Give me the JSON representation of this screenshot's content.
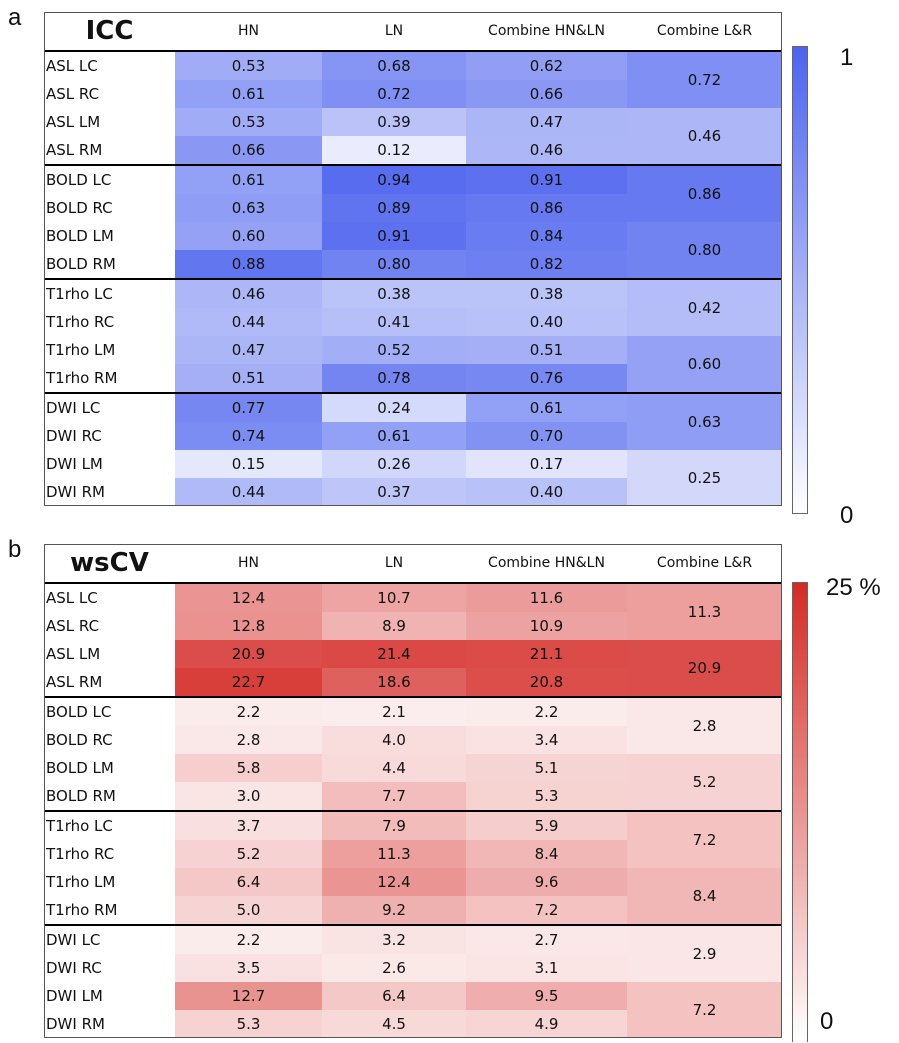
{
  "panels": [
    {
      "letter": "a",
      "metric": "ICC",
      "columns": [
        "HN",
        "LN",
        "Combine HN&LN",
        "Combine L&R"
      ],
      "colorbar": {
        "max_label": "1",
        "min_label": "0",
        "min": 0,
        "max": 1,
        "color": "#4d63ee"
      },
      "rows": [
        {
          "label": "ASL LC",
          "values": [
            "0.53",
            "0.68",
            "0.62"
          ]
        },
        {
          "label": "ASL RC",
          "values": [
            "0.61",
            "0.72",
            "0.66"
          ]
        },
        {
          "label": "ASL LM",
          "values": [
            "0.53",
            "0.39",
            "0.47"
          ]
        },
        {
          "label": "ASL RM",
          "values": [
            "0.66",
            "0.12",
            "0.46"
          ]
        },
        {
          "label": "BOLD LC",
          "values": [
            "0.61",
            "0.94",
            "0.91"
          ]
        },
        {
          "label": "BOLD RC",
          "values": [
            "0.63",
            "0.89",
            "0.86"
          ]
        },
        {
          "label": "BOLD LM",
          "values": [
            "0.60",
            "0.91",
            "0.84"
          ]
        },
        {
          "label": "BOLD RM",
          "values": [
            "0.88",
            "0.80",
            "0.82"
          ]
        },
        {
          "label": "T1rho LC",
          "values": [
            "0.46",
            "0.38",
            "0.38"
          ]
        },
        {
          "label": "T1rho RC",
          "values": [
            "0.44",
            "0.41",
            "0.40"
          ]
        },
        {
          "label": "T1rho LM",
          "values": [
            "0.47",
            "0.52",
            "0.51"
          ]
        },
        {
          "label": "T1rho RM",
          "values": [
            "0.51",
            "0.78",
            "0.76"
          ]
        },
        {
          "label": "DWI LC",
          "values": [
            "0.77",
            "0.24",
            "0.61"
          ]
        },
        {
          "label": "DWI RC",
          "values": [
            "0.74",
            "0.61",
            "0.70"
          ]
        },
        {
          "label": "DWI LM",
          "values": [
            "0.15",
            "0.26",
            "0.17"
          ]
        },
        {
          "label": "DWI RM",
          "values": [
            "0.44",
            "0.37",
            "0.40"
          ]
        }
      ],
      "combined_lr": [
        "0.72",
        "0.46",
        "0.86",
        "0.80",
        "0.42",
        "0.60",
        "0.63",
        "0.25"
      ]
    },
    {
      "letter": "b",
      "metric": "wsCV",
      "columns": [
        "HN",
        "LN",
        "Combine HN&LN",
        "Combine L&R"
      ],
      "colorbar": {
        "max_label": "25 %",
        "min_label": "0",
        "min": 0,
        "max": 25,
        "color": "#d42a26"
      },
      "rows": [
        {
          "label": "ASL LC",
          "values": [
            "12.4",
            "10.7",
            "11.6"
          ]
        },
        {
          "label": "ASL RC",
          "values": [
            "12.8",
            "8.9",
            "10.9"
          ]
        },
        {
          "label": "ASL LM",
          "values": [
            "20.9",
            "21.4",
            "21.1"
          ]
        },
        {
          "label": "ASL RM",
          "values": [
            "22.7",
            "18.6",
            "20.8"
          ]
        },
        {
          "label": "BOLD LC",
          "values": [
            "2.2",
            "2.1",
            "2.2"
          ]
        },
        {
          "label": "BOLD RC",
          "values": [
            "2.8",
            "4.0",
            "3.4"
          ]
        },
        {
          "label": "BOLD LM",
          "values": [
            "5.8",
            "4.4",
            "5.1"
          ]
        },
        {
          "label": "BOLD RM",
          "values": [
            "3.0",
            "7.7",
            "5.3"
          ]
        },
        {
          "label": "T1rho LC",
          "values": [
            "3.7",
            "7.9",
            "5.9"
          ]
        },
        {
          "label": "T1rho RC",
          "values": [
            "5.2",
            "11.3",
            "8.4"
          ]
        },
        {
          "label": "T1rho LM",
          "values": [
            "6.4",
            "12.4",
            "9.6"
          ]
        },
        {
          "label": "T1rho RM",
          "values": [
            "5.0",
            "9.2",
            "7.2"
          ]
        },
        {
          "label": "DWI LC",
          "values": [
            "2.2",
            "3.2",
            "2.7"
          ]
        },
        {
          "label": "DWI RC",
          "values": [
            "3.5",
            "2.6",
            "3.1"
          ]
        },
        {
          "label": "DWI LM",
          "values": [
            "12.7",
            "6.4",
            "9.5"
          ]
        },
        {
          "label": "DWI RM",
          "values": [
            "5.3",
            "4.5",
            "4.9"
          ]
        }
      ],
      "combined_lr": [
        "11.3",
        "20.9",
        "2.8",
        "5.2",
        "7.2",
        "8.4",
        "2.9",
        "7.2"
      ]
    }
  ],
  "chart_data": [
    {
      "type": "heatmap",
      "title": "ICC",
      "x": [
        "HN",
        "LN",
        "Combine HN&LN",
        "Combine L&R"
      ],
      "y": [
        "ASL LC",
        "ASL RC",
        "ASL LM",
        "ASL RM",
        "BOLD LC",
        "BOLD RC",
        "BOLD LM",
        "BOLD RM",
        "T1rho LC",
        "T1rho RC",
        "T1rho LM",
        "T1rho RM",
        "DWI LC",
        "DWI RC",
        "DWI LM",
        "DWI RM"
      ],
      "values": [
        [
          0.53,
          0.68,
          0.62
        ],
        [
          0.61,
          0.72,
          0.66
        ],
        [
          0.53,
          0.39,
          0.47
        ],
        [
          0.66,
          0.12,
          0.46
        ],
        [
          0.61,
          0.94,
          0.91
        ],
        [
          0.63,
          0.89,
          0.86
        ],
        [
          0.6,
          0.91,
          0.84
        ],
        [
          0.88,
          0.8,
          0.82
        ],
        [
          0.46,
          0.38,
          0.38
        ],
        [
          0.44,
          0.41,
          0.4
        ],
        [
          0.47,
          0.52,
          0.51
        ],
        [
          0.51,
          0.78,
          0.76
        ],
        [
          0.77,
          0.24,
          0.61
        ],
        [
          0.74,
          0.61,
          0.7
        ],
        [
          0.15,
          0.26,
          0.17
        ],
        [
          0.44,
          0.37,
          0.4
        ]
      ],
      "combine_lr": [
        0.72,
        0.46,
        0.86,
        0.8,
        0.42,
        0.6,
        0.63,
        0.25
      ],
      "scale": [
        0,
        1
      ]
    },
    {
      "type": "heatmap",
      "title": "wsCV",
      "x": [
        "HN",
        "LN",
        "Combine HN&LN",
        "Combine L&R"
      ],
      "y": [
        "ASL LC",
        "ASL RC",
        "ASL LM",
        "ASL RM",
        "BOLD LC",
        "BOLD RC",
        "BOLD LM",
        "BOLD RM",
        "T1rho LC",
        "T1rho RC",
        "T1rho LM",
        "T1rho RM",
        "DWI LC",
        "DWI RC",
        "DWI LM",
        "DWI RM"
      ],
      "values": [
        [
          12.4,
          10.7,
          11.6
        ],
        [
          12.8,
          8.9,
          10.9
        ],
        [
          20.9,
          21.4,
          21.1
        ],
        [
          22.7,
          18.6,
          20.8
        ],
        [
          2.2,
          2.1,
          2.2
        ],
        [
          2.8,
          4.0,
          3.4
        ],
        [
          5.8,
          4.4,
          5.1
        ],
        [
          3.0,
          7.7,
          5.3
        ],
        [
          3.7,
          7.9,
          5.9
        ],
        [
          5.2,
          11.3,
          8.4
        ],
        [
          6.4,
          12.4,
          9.6
        ],
        [
          5.0,
          9.2,
          7.2
        ],
        [
          2.2,
          3.2,
          2.7
        ],
        [
          3.5,
          2.6,
          3.1
        ],
        [
          12.7,
          6.4,
          9.5
        ],
        [
          5.3,
          4.5,
          4.9
        ]
      ],
      "combine_lr": [
        11.3,
        20.9,
        2.8,
        5.2,
        7.2,
        8.4,
        2.9,
        7.2
      ],
      "scale": [
        0,
        25
      ]
    }
  ]
}
